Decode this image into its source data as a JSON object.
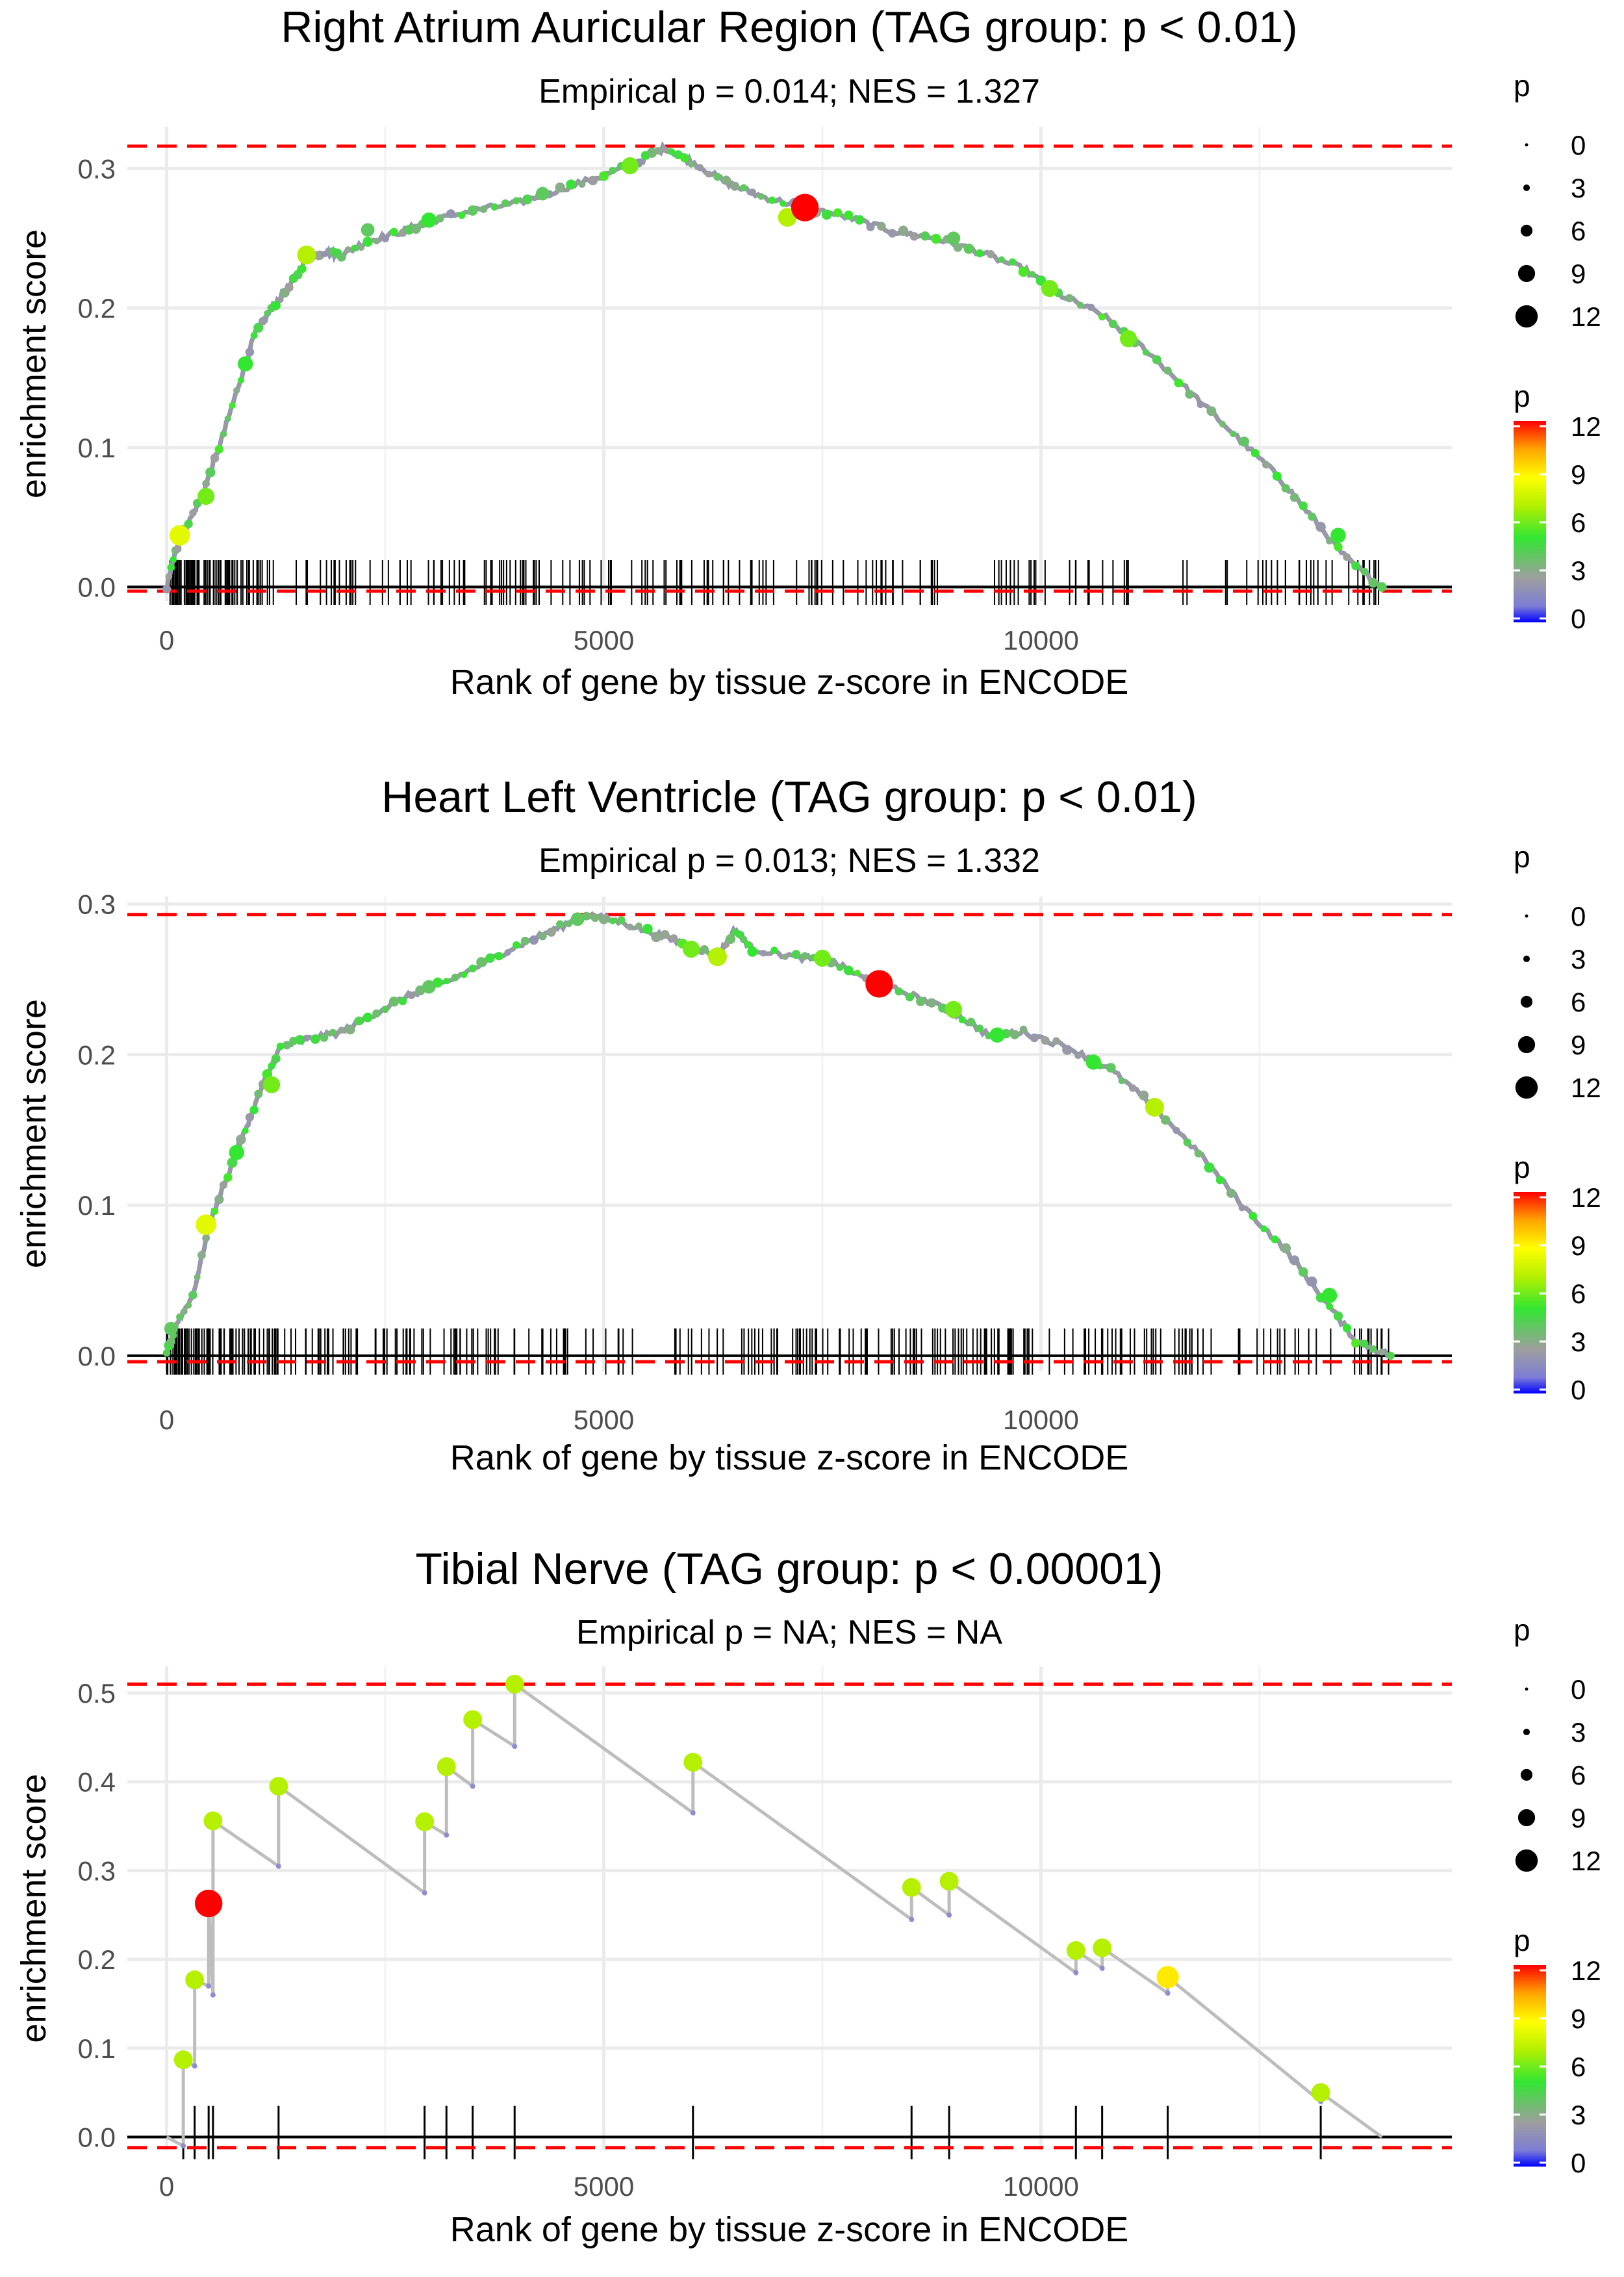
{
  "chart_data": [
    {
      "type": "line",
      "title": "Right Atrium Auricular Region (TAG group: p < 0.01)",
      "subtitle": "Empirical p = 0.014; NES = 1.327",
      "xlabel": "Rank of gene by tissue z-score in ENCODE",
      "ylabel": "enrichment score",
      "xlim": [
        -450,
        14700
      ],
      "ylim": [
        -0.01,
        0.33
      ],
      "xticks": [
        0,
        5000,
        10000
      ],
      "xtick_labels": [
        "0",
        "5000",
        "10000"
      ],
      "yticks": [
        0.0,
        0.1,
        0.2,
        0.3
      ],
      "ytick_labels": [
        "0.0",
        "0.1",
        "0.2",
        "0.3"
      ],
      "max_es": 0.316,
      "min_es": -0.003,
      "legend": {
        "size_title": "p",
        "size_labels": [
          "0",
          "3",
          "6",
          "9",
          "12"
        ],
        "color_title": "p",
        "color_labels": [
          "12",
          "9",
          "6",
          "3",
          "0"
        ],
        "placement": "right"
      },
      "curve": [
        [
          0,
          0.0
        ],
        [
          100,
          0.025
        ],
        [
          200,
          0.04
        ],
        [
          400,
          0.065
        ],
        [
          600,
          0.1
        ],
        [
          800,
          0.14
        ],
        [
          1000,
          0.18
        ],
        [
          1200,
          0.2
        ],
        [
          1400,
          0.215
        ],
        [
          1600,
          0.235
        ],
        [
          1800,
          0.24
        ],
        [
          2000,
          0.238
        ],
        [
          2300,
          0.248
        ],
        [
          2700,
          0.255
        ],
        [
          3000,
          0.262
        ],
        [
          3500,
          0.27
        ],
        [
          4000,
          0.275
        ],
        [
          4500,
          0.285
        ],
        [
          5000,
          0.295
        ],
        [
          5400,
          0.305
        ],
        [
          5700,
          0.315
        ],
        [
          6000,
          0.305
        ],
        [
          6400,
          0.29
        ],
        [
          6800,
          0.28
        ],
        [
          7300,
          0.272
        ],
        [
          7800,
          0.265
        ],
        [
          8300,
          0.255
        ],
        [
          8800,
          0.25
        ],
        [
          9300,
          0.24
        ],
        [
          9800,
          0.228
        ],
        [
          10200,
          0.21
        ],
        [
          10700,
          0.195
        ],
        [
          11200,
          0.17
        ],
        [
          11700,
          0.14
        ],
        [
          12200,
          0.11
        ],
        [
          12700,
          0.08
        ],
        [
          13100,
          0.05
        ],
        [
          13500,
          0.02
        ],
        [
          13900,
          0.0
        ]
      ],
      "highlights": [
        {
          "x": 150,
          "y": 0.037,
          "p": 8
        },
        {
          "x": 450,
          "y": 0.065,
          "p": 6
        },
        {
          "x": 900,
          "y": 0.16,
          "p": 5
        },
        {
          "x": 1600,
          "y": 0.238,
          "p": 7
        },
        {
          "x": 2300,
          "y": 0.256,
          "p": 4
        },
        {
          "x": 3000,
          "y": 0.263,
          "p": 5
        },
        {
          "x": 4300,
          "y": 0.282,
          "p": 4
        },
        {
          "x": 5300,
          "y": 0.302,
          "p": 6
        },
        {
          "x": 7100,
          "y": 0.265,
          "p": 7
        },
        {
          "x": 7300,
          "y": 0.272,
          "p": 12
        },
        {
          "x": 9000,
          "y": 0.25,
          "p": 4
        },
        {
          "x": 10100,
          "y": 0.214,
          "p": 6
        },
        {
          "x": 11000,
          "y": 0.178,
          "p": 6
        },
        {
          "x": 13400,
          "y": 0.037,
          "p": 5
        }
      ],
      "rug_density": [
        [
          0,
          350,
          30
        ],
        [
          350,
          1200,
          45
        ],
        [
          1200,
          2600,
          18
        ],
        [
          2600,
          3400,
          13
        ],
        [
          3400,
          4400,
          24
        ],
        [
          4400,
          5400,
          12
        ],
        [
          5400,
          5700,
          5
        ],
        [
          5700,
          7100,
          22
        ],
        [
          7100,
          8200,
          16
        ],
        [
          8200,
          9000,
          10
        ],
        [
          9000,
          10500,
          16
        ],
        [
          10500,
          11700,
          10
        ],
        [
          11700,
          13100,
          14
        ],
        [
          13100,
          13900,
          12
        ]
      ]
    },
    {
      "type": "line",
      "title": "Heart Left Ventricle (TAG group: p < 0.01)",
      "subtitle": "Empirical p = 0.013; NES = 1.332",
      "xlabel": "Rank of gene by tissue z-score in ENCODE",
      "ylabel": "enrichment score",
      "xlim": [
        -450,
        14700
      ],
      "ylim": [
        -0.01,
        0.305
      ],
      "xticks": [
        0,
        5000,
        10000
      ],
      "xtick_labels": [
        "0",
        "5000",
        "10000"
      ],
      "yticks": [
        0.0,
        0.1,
        0.2,
        0.3
      ],
      "ytick_labels": [
        "0.0",
        "0.1",
        "0.2",
        "0.3"
      ],
      "max_es": 0.293,
      "min_es": -0.004,
      "legend": {
        "size_title": "p",
        "size_labels": [
          "0",
          "3",
          "6",
          "9",
          "12"
        ],
        "color_title": "p",
        "color_labels": [
          "12",
          "9",
          "6",
          "3",
          "0"
        ],
        "placement": "right"
      },
      "curve": [
        [
          0,
          0.0
        ],
        [
          100,
          0.02
        ],
        [
          300,
          0.04
        ],
        [
          500,
          0.09
        ],
        [
          700,
          0.12
        ],
        [
          900,
          0.15
        ],
        [
          1100,
          0.18
        ],
        [
          1300,
          0.205
        ],
        [
          1600,
          0.21
        ],
        [
          2000,
          0.215
        ],
        [
          2400,
          0.228
        ],
        [
          2800,
          0.24
        ],
        [
          3200,
          0.248
        ],
        [
          3600,
          0.26
        ],
        [
          4000,
          0.272
        ],
        [
          4400,
          0.282
        ],
        [
          4800,
          0.293
        ],
        [
          5200,
          0.288
        ],
        [
          5600,
          0.28
        ],
        [
          6000,
          0.272
        ],
        [
          6300,
          0.265
        ],
        [
          6500,
          0.283
        ],
        [
          6700,
          0.27
        ],
        [
          7200,
          0.265
        ],
        [
          7600,
          0.262
        ],
        [
          8000,
          0.25
        ],
        [
          8500,
          0.24
        ],
        [
          9000,
          0.228
        ],
        [
          9400,
          0.213
        ],
        [
          9800,
          0.215
        ],
        [
          10300,
          0.205
        ],
        [
          10800,
          0.19
        ],
        [
          11300,
          0.165
        ],
        [
          11800,
          0.135
        ],
        [
          12300,
          0.1
        ],
        [
          12800,
          0.07
        ],
        [
          13200,
          0.04
        ],
        [
          13600,
          0.01
        ],
        [
          14000,
          0.0
        ]
      ],
      "highlights": [
        {
          "x": 50,
          "y": 0.018,
          "p": 4
        },
        {
          "x": 450,
          "y": 0.087,
          "p": 8
        },
        {
          "x": 800,
          "y": 0.135,
          "p": 5
        },
        {
          "x": 1200,
          "y": 0.18,
          "p": 6
        },
        {
          "x": 3000,
          "y": 0.245,
          "p": 4
        },
        {
          "x": 4700,
          "y": 0.29,
          "p": 4
        },
        {
          "x": 6000,
          "y": 0.27,
          "p": 6
        },
        {
          "x": 6300,
          "y": 0.265,
          "p": 7
        },
        {
          "x": 7500,
          "y": 0.264,
          "p": 6
        },
        {
          "x": 8150,
          "y": 0.247,
          "p": 12
        },
        {
          "x": 9000,
          "y": 0.23,
          "p": 6
        },
        {
          "x": 9500,
          "y": 0.213,
          "p": 5
        },
        {
          "x": 10600,
          "y": 0.195,
          "p": 5
        },
        {
          "x": 11300,
          "y": 0.165,
          "p": 7
        },
        {
          "x": 13300,
          "y": 0.04,
          "p": 5
        }
      ],
      "rug_density": [
        [
          0,
          400,
          28
        ],
        [
          400,
          1300,
          42
        ],
        [
          1300,
          2300,
          22
        ],
        [
          2300,
          3400,
          26
        ],
        [
          3400,
          4500,
          18
        ],
        [
          4500,
          5200,
          10
        ],
        [
          5200,
          6200,
          8
        ],
        [
          6200,
          6600,
          4
        ],
        [
          6600,
          7800,
          26
        ],
        [
          7800,
          8600,
          16
        ],
        [
          8600,
          9600,
          24
        ],
        [
          9600,
          11000,
          32
        ],
        [
          11000,
          12500,
          22
        ],
        [
          12500,
          14000,
          20
        ]
      ]
    },
    {
      "type": "line",
      "title": "Tibial Nerve (TAG group: p < 0.00001)",
      "subtitle": "Empirical p = NA; NES = NA",
      "xlabel": "Rank of gene by tissue z-score in ENCODE",
      "ylabel": "enrichment score",
      "xlim": [
        -450,
        14700
      ],
      "ylim": [
        -0.015,
        0.53
      ],
      "xticks": [
        0,
        5000,
        10000
      ],
      "xtick_labels": [
        "0",
        "5000",
        "10000"
      ],
      "yticks": [
        0.0,
        0.1,
        0.2,
        0.3,
        0.4,
        0.5
      ],
      "ytick_labels": [
        "0.0",
        "0.1",
        "0.2",
        "0.3",
        "0.4",
        "0.5"
      ],
      "max_es": 0.51,
      "min_es": -0.012,
      "legend": {
        "size_title": "p",
        "size_labels": [
          "0",
          "3",
          "6",
          "9",
          "12"
        ],
        "color_title": "p",
        "color_labels": [
          "12",
          "9",
          "6",
          "3",
          "0"
        ],
        "placement": "right"
      },
      "steps": [
        {
          "x": 190,
          "before": -0.01,
          "after": 0.087,
          "p": 7
        },
        {
          "x": 320,
          "before": 0.08,
          "after": 0.177,
          "p": 7
        },
        {
          "x": 480,
          "before": 0.17,
          "after": 0.263,
          "p": 12
        },
        {
          "x": 530,
          "before": 0.16,
          "after": 0.356,
          "p": 7
        },
        {
          "x": 1280,
          "before": 0.305,
          "after": 0.395,
          "p": 7
        },
        {
          "x": 2950,
          "before": 0.275,
          "after": 0.355,
          "p": 7
        },
        {
          "x": 3200,
          "before": 0.34,
          "after": 0.417,
          "p": 7
        },
        {
          "x": 3500,
          "before": 0.395,
          "after": 0.47,
          "p": 7
        },
        {
          "x": 3980,
          "before": 0.44,
          "after": 0.51,
          "p": 7
        },
        {
          "x": 6020,
          "before": 0.365,
          "after": 0.422,
          "p": 7
        },
        {
          "x": 8520,
          "before": 0.245,
          "after": 0.281,
          "p": 7
        },
        {
          "x": 8950,
          "before": 0.25,
          "after": 0.288,
          "p": 7
        },
        {
          "x": 10400,
          "before": 0.185,
          "after": 0.21,
          "p": 7
        },
        {
          "x": 10700,
          "before": 0.19,
          "after": 0.213,
          "p": 7
        },
        {
          "x": 11450,
          "before": 0.162,
          "after": 0.18,
          "p": 9
        },
        {
          "x": 13200,
          "before": 0.04,
          "after": 0.05,
          "p": 7
        }
      ],
      "end": [
        13900,
        0.0
      ],
      "start": [
        0,
        0.0
      ]
    }
  ]
}
